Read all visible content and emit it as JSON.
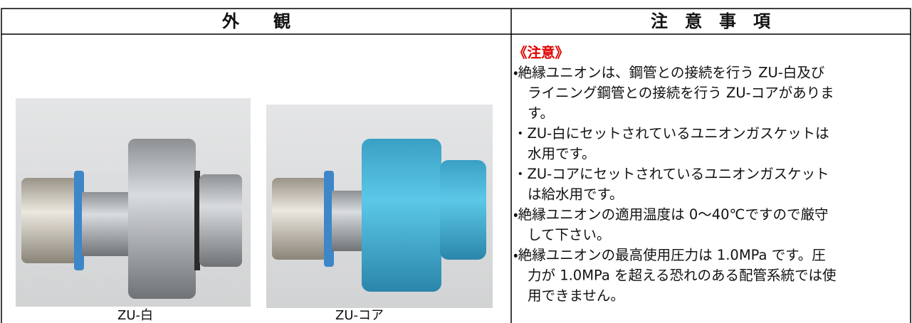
{
  "table": {
    "headers": [
      "外　　観",
      "注　意　事　項"
    ],
    "images": [
      {
        "caption": "ZU-白"
      },
      {
        "caption": "ZU-コア"
      }
    ],
    "notes": {
      "heading": "《注意》",
      "items": [
        [
          "・絶縁ユニオンは、鋼管との接続を行う ZU-白及び",
          "ライニング鋼管との接続を行う ZU-コアがありま",
          "す。"
        ],
        [
          "・ZU-白にセットされているユニオンガスケットは",
          "水用です。"
        ],
        [
          "・ZU-コアにセットされているユニオンガスケット",
          "は給水用です。"
        ],
        [
          "・絶縁ユニオンの適用温度は 0～40℃ですので厳守",
          "して下さい。"
        ],
        [
          "・絶縁ユニオンの最高使用圧力は 1.0MPa です。圧",
          "力が 1.0MPa を超える恐れのある配管系統では使",
          "用できません。"
        ]
      ]
    }
  }
}
